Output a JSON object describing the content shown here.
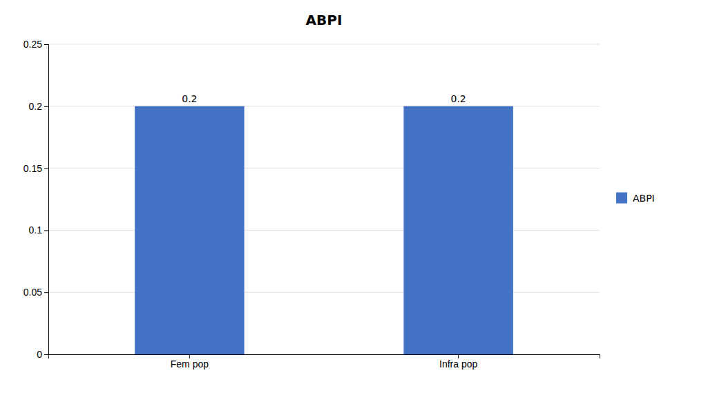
{
  "chart_data": {
    "type": "bar",
    "title": "ABPI",
    "categories": [
      "Fem pop",
      "Infra pop"
    ],
    "series": [
      {
        "name": "ABPI",
        "color": "#4472C4",
        "values": [
          0.2,
          0.2
        ]
      }
    ],
    "ylim": [
      0,
      0.25
    ],
    "yticks": [
      0,
      0.05,
      0.1,
      0.15,
      0.2,
      0.25
    ],
    "grid": true,
    "legend": "right",
    "data_labels": true
  }
}
